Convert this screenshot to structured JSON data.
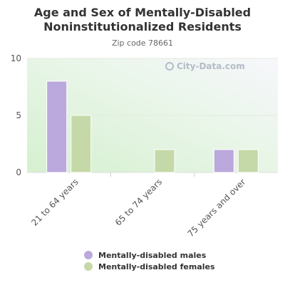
{
  "chart_data": {
    "type": "bar",
    "title": "Age and Sex of Mentally-Disabled Noninstitutionalized Residents",
    "subtitle": "Zip code 78661",
    "categories": [
      "21 to 64 years",
      "65 to 74 years",
      "75 years and over"
    ],
    "series": [
      {
        "name": "Mentally-disabled males",
        "values": [
          8,
          0,
          2
        ],
        "color": "#bba8dc"
      },
      {
        "name": "Mentally-disabled females",
        "values": [
          5,
          2,
          2
        ],
        "color": "#c5d9a8"
      }
    ],
    "yticks": [
      0,
      5,
      10
    ],
    "ylim": [
      0,
      10
    ],
    "legend_position": "bottom",
    "grid": true
  },
  "watermark": {
    "text": "City-Data.com",
    "icon": "city-data-logo-icon"
  }
}
